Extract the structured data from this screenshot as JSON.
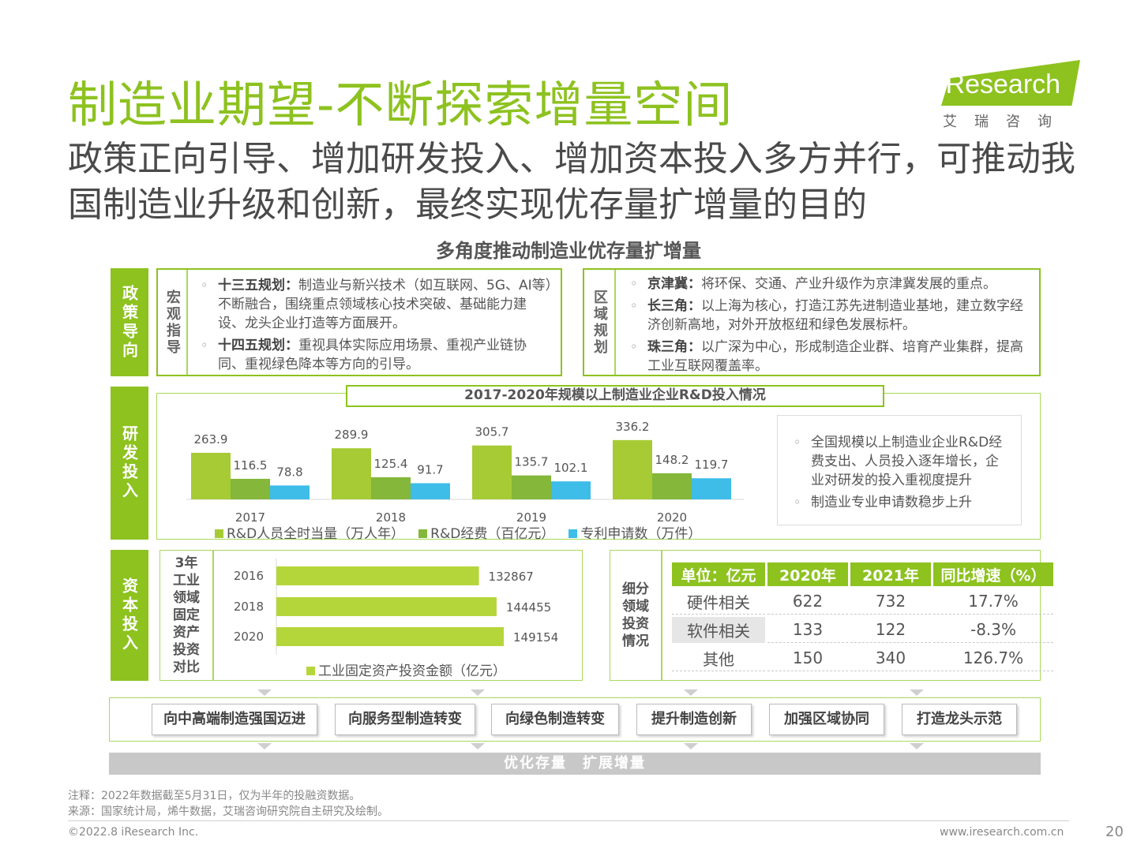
{
  "header": {
    "title": "制造业期望-不断探索增量空间",
    "subtitle": "政策正向引导、增加研发投入、增加资本投入多方并行，可推动我国制造业升级和创新，最终实现优存量扩增量的目的",
    "logo_text": "iResearch",
    "logo_sub": "艾瑞咨询"
  },
  "section_title": "多角度推动制造业优存量扩增量",
  "policy": {
    "side_label": "政策导向",
    "macro": {
      "label": "宏观指导",
      "items": [
        {
          "key": "十三五规划：",
          "text": "制造业与新兴技术（如互联网、5G、AI等）不断融合，围绕重点领域核心技术突破、基础能力建设、龙头企业打造等方面展开。"
        },
        {
          "key": "十四五规划：",
          "text": "重视具体实际应用场景、重视产业链协同、重视绿色降本等方向的引导。"
        }
      ]
    },
    "regional": {
      "label": "区域规划",
      "items": [
        {
          "key": "京津冀：",
          "text": "将环保、交通、产业升级作为京津冀发展的重点。"
        },
        {
          "key": "长三角：",
          "text": "以上海为核心，打造江苏先进制造业基地，建立数字经济创新高地，对外开放枢纽和绿色发展标杆。"
        },
        {
          "key": "珠三角：",
          "text": "以广深为中心，形成制造企业群、培育产业集群，提高工业互联网覆盖率。"
        }
      ]
    }
  },
  "rd": {
    "side_label": "研发投入",
    "notes": [
      "全国规模以上制造业企业R&D经费支出、人员投入逐年增长，企业对研发的投入重视度提升",
      "制造业专业申请数稳步上升"
    ]
  },
  "capital": {
    "side_label": "资本投入",
    "bar_label": "3年工业领域固定资产投资对比",
    "table_label": "细分领域投资情况",
    "table": {
      "headers": [
        "单位：亿元",
        "2020年",
        "2021年",
        "同比增速（%）"
      ],
      "rows": [
        [
          "硬件相关",
          "622",
          "732",
          "17.7%"
        ],
        [
          "软件相关",
          "133",
          "122",
          "-8.3%"
        ],
        [
          "其他",
          "150",
          "340",
          "126.7%"
        ]
      ]
    }
  },
  "outcomes": [
    "向中高端制造强国迈进",
    "向服务型制造转变",
    "向绿色制造转变",
    "提升制造创新",
    "加强区域协同",
    "打造龙头示范"
  ],
  "bottom_banner": "优化存量　扩展增量",
  "footer": {
    "note": "注释：2022年数据截至5月31日，仅为半年的投融资数据。",
    "source": "来源：国家统计局，烯牛数据，艾瑞咨询研究院自主研究及绘制。",
    "copyright": "©2022.8 iResearch Inc.",
    "website": "www.iresearch.com.cn",
    "page": "20"
  },
  "colors": {
    "green": "#8dc21f",
    "mid_green": "#84b73a",
    "blue": "#3dbde8",
    "light_green": "#b5d63b"
  },
  "chart_data": [
    {
      "type": "bar",
      "title": "2017-2020年规模以上制造业企业R&D投入情况",
      "categories": [
        "2017",
        "2018",
        "2019",
        "2020"
      ],
      "series": [
        {
          "name": "R&D人员全时当量（万人年）",
          "values": [
            263.9,
            289.9,
            305.7,
            336.2
          ],
          "color": "#a6cb34"
        },
        {
          "name": "R&D经费（百亿元）",
          "values": [
            116.5,
            125.4,
            135.7,
            148.2
          ],
          "color": "#84b73a"
        },
        {
          "name": "专利申请数（万件）",
          "values": [
            78.8,
            91.7,
            102.1,
            119.7
          ],
          "color": "#3dbde8"
        }
      ],
      "ylim": [
        0,
        340
      ],
      "legend": "bottom"
    },
    {
      "type": "bar",
      "orientation": "horizontal",
      "categories": [
        "2016",
        "2018",
        "2020"
      ],
      "series": [
        {
          "name": "工业固定资产投资金额（亿元）",
          "values": [
            132867,
            144455,
            149154
          ],
          "color": "#b5d63b"
        }
      ],
      "xlim": [
        0,
        149154
      ],
      "legend": "bottom"
    }
  ]
}
